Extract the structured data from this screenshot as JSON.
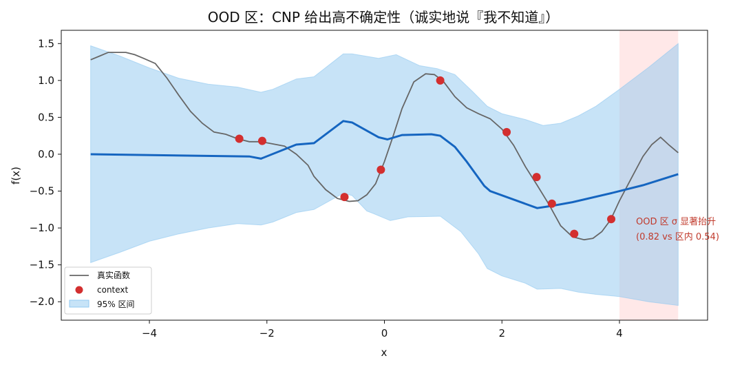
{
  "chart_data": {
    "type": "line",
    "title": "OOD 区：CNP 给出高不确定性（诚实地说『我不知道』）",
    "xlabel": "x",
    "ylabel": "f(x)",
    "xlim": [
      -5.5,
      5.5
    ],
    "ylim": [
      -2.25,
      1.68
    ],
    "xticks": [
      -4,
      -2,
      0,
      2,
      4
    ],
    "yticks": [
      -2.0,
      -1.5,
      -1.0,
      -0.5,
      0.0,
      0.5,
      1.0,
      1.5
    ],
    "xtick_labels": [
      "−4",
      "−2",
      "0",
      "2",
      "4"
    ],
    "ytick_labels": [
      "−2.0",
      "−1.5",
      "−1.0",
      "−0.5",
      "0.0",
      "0.5",
      "1.0",
      "1.5"
    ],
    "grid": false,
    "legend_position": "lower-left",
    "ood_region": {
      "x_start": 4.0,
      "x_end": 5.0,
      "color": "#ffd6d6"
    },
    "annotation": {
      "lines": [
        "OOD 区 σ 显著抬升",
        "(0.82 vs 区内 0.54)"
      ],
      "x": 4.3,
      "y": -0.92,
      "color": "#c0392b"
    },
    "legend": {
      "true_function": "真实函数",
      "context": "context",
      "band": "95% 区间"
    },
    "colors": {
      "true_function": "#666666",
      "mean": "#1565c0",
      "band": "#90c8f0",
      "context": "#d32f2f",
      "ood": "#ffd6d6"
    },
    "true_function": {
      "x": [
        -5.0,
        -4.85,
        -4.7,
        -4.55,
        -4.4,
        -4.25,
        -4.1,
        -3.9,
        -3.7,
        -3.5,
        -3.3,
        -3.1,
        -2.9,
        -2.7,
        -2.5,
        -2.3,
        -2.1,
        -1.9,
        -1.7,
        -1.5,
        -1.3,
        -1.2,
        -1.0,
        -0.8,
        -0.6,
        -0.45,
        -0.3,
        -0.15,
        0.0,
        0.15,
        0.3,
        0.5,
        0.7,
        0.85,
        1.0,
        1.2,
        1.4,
        1.6,
        1.8,
        2.0,
        2.2,
        2.4,
        2.6,
        2.8,
        3.0,
        3.2,
        3.4,
        3.55,
        3.7,
        3.85,
        4.0,
        4.2,
        4.4,
        4.55,
        4.7,
        4.85,
        5.0
      ],
      "y": [
        1.28,
        1.33,
        1.38,
        1.38,
        1.38,
        1.35,
        1.3,
        1.23,
        1.03,
        0.8,
        0.58,
        0.42,
        0.3,
        0.27,
        0.21,
        0.17,
        0.17,
        0.14,
        0.11,
        0.0,
        -0.15,
        -0.3,
        -0.48,
        -0.6,
        -0.64,
        -0.63,
        -0.55,
        -0.4,
        -0.1,
        0.25,
        0.62,
        0.98,
        1.09,
        1.08,
        0.99,
        0.78,
        0.63,
        0.55,
        0.48,
        0.34,
        0.12,
        -0.17,
        -0.42,
        -0.68,
        -0.97,
        -1.12,
        -1.16,
        -1.14,
        -1.05,
        -0.89,
        -0.63,
        -0.33,
        -0.03,
        0.13,
        0.23,
        0.12,
        0.02
      ]
    },
    "mean": {
      "x": [
        -5.0,
        -2.3,
        -2.1,
        -1.5,
        -1.2,
        -0.7,
        -0.55,
        -0.1,
        0.05,
        0.3,
        0.8,
        0.95,
        1.2,
        1.4,
        1.7,
        1.8,
        2.6,
        2.85,
        3.2,
        3.9,
        4.4,
        5.0
      ],
      "y": [
        0.0,
        -0.03,
        -0.06,
        0.13,
        0.15,
        0.45,
        0.43,
        0.23,
        0.2,
        0.26,
        0.27,
        0.25,
        0.1,
        -0.1,
        -0.43,
        -0.5,
        -0.73,
        -0.7,
        -0.65,
        -0.52,
        -0.42,
        -0.27
      ]
    },
    "upper": {
      "x": [
        -5.0,
        -4.5,
        -4.0,
        -3.5,
        -3.0,
        -2.5,
        -2.1,
        -1.9,
        -1.5,
        -1.2,
        -0.7,
        -0.55,
        -0.1,
        0.2,
        0.6,
        0.9,
        1.2,
        1.5,
        1.75,
        2.0,
        2.4,
        2.7,
        3.0,
        3.3,
        3.6,
        4.0,
        4.5,
        5.0
      ],
      "y": [
        1.47,
        1.33,
        1.17,
        1.03,
        0.95,
        0.91,
        0.84,
        0.88,
        1.02,
        1.05,
        1.36,
        1.36,
        1.3,
        1.35,
        1.2,
        1.16,
        1.08,
        0.85,
        0.65,
        0.55,
        0.47,
        0.39,
        0.42,
        0.52,
        0.65,
        0.88,
        1.18,
        1.5
      ]
    },
    "lower": {
      "x": [
        -5.0,
        -4.5,
        -4.0,
        -3.5,
        -3.0,
        -2.5,
        -2.1,
        -1.9,
        -1.5,
        -1.2,
        -0.7,
        -0.55,
        -0.3,
        -0.2,
        0.1,
        0.4,
        0.95,
        1.3,
        1.6,
        1.75,
        2.0,
        2.4,
        2.6,
        3.0,
        3.3,
        3.6,
        4.0,
        4.5,
        5.0
      ],
      "y": [
        -1.47,
        -1.33,
        -1.18,
        -1.08,
        -1.0,
        -0.94,
        -0.96,
        -0.92,
        -0.79,
        -0.75,
        -0.53,
        -0.56,
        -0.77,
        -0.8,
        -0.9,
        -0.85,
        -0.84,
        -1.05,
        -1.35,
        -1.55,
        -1.65,
        -1.75,
        -1.83,
        -1.82,
        -1.87,
        -1.9,
        -1.93,
        -2.0,
        -2.05
      ]
    },
    "context_points": [
      {
        "x": -2.47,
        "y": 0.21
      },
      {
        "x": -2.08,
        "y": 0.18
      },
      {
        "x": -0.68,
        "y": -0.58
      },
      {
        "x": -0.06,
        "y": -0.21
      },
      {
        "x": 0.95,
        "y": 1.0
      },
      {
        "x": 2.08,
        "y": 0.3
      },
      {
        "x": 2.59,
        "y": -0.31
      },
      {
        "x": 2.85,
        "y": -0.67
      },
      {
        "x": 3.23,
        "y": -1.08
      },
      {
        "x": 3.86,
        "y": -0.88
      }
    ]
  }
}
